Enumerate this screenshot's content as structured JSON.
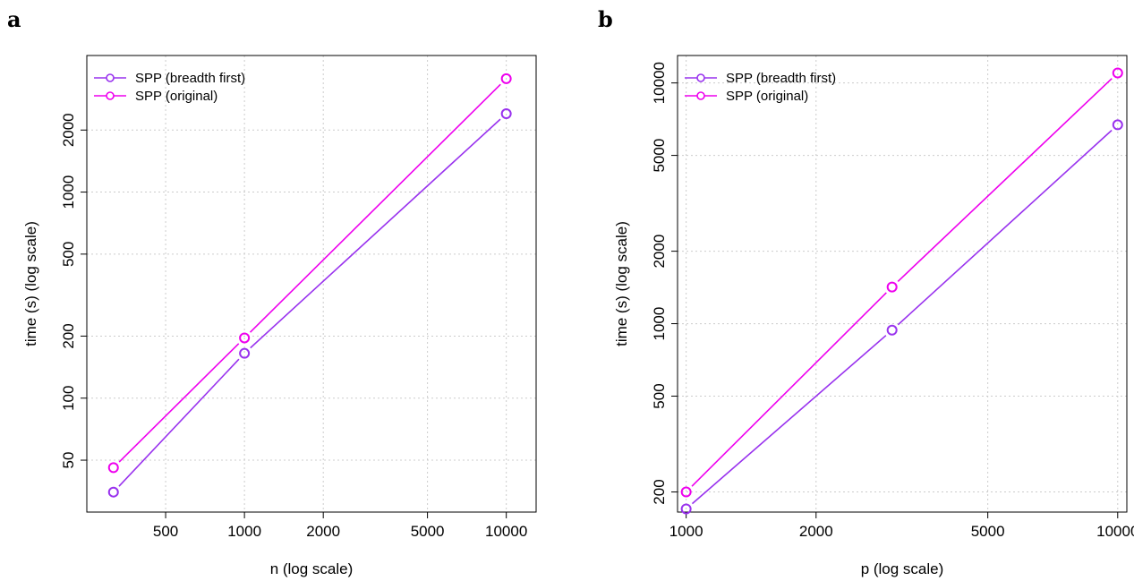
{
  "colors": {
    "breadth_first": "#9932ee",
    "original": "#ee00ee",
    "grid": "#cccccc",
    "axis": "#000000"
  },
  "chart_data": [
    {
      "panel": "a",
      "type": "line",
      "xlabel": "n (log scale)",
      "ylabel": "time (s) (log scale)",
      "xscale": "log",
      "yscale": "log",
      "xlim": [
        250,
        13000
      ],
      "ylim": [
        28,
        4600
      ],
      "xticks": [
        500,
        1000,
        2000,
        5000,
        10000
      ],
      "yticks": [
        50,
        100,
        200,
        500,
        1000,
        2000
      ],
      "grid": true,
      "legend_position": "top-left",
      "series": [
        {
          "name": "SPP (breadth first)",
          "color_key": "breadth_first",
          "x": [
            316,
            1000,
            10000
          ],
          "y": [
            35,
            165,
            2400
          ]
        },
        {
          "name": "SPP (original)",
          "color_key": "original",
          "x": [
            316,
            1000,
            10000
          ],
          "y": [
            46,
            196,
            3550
          ]
        }
      ]
    },
    {
      "panel": "b",
      "type": "line",
      "xlabel": "p (log scale)",
      "ylabel": "time (s) (log scale)",
      "xscale": "log",
      "yscale": "log",
      "xlim": [
        955,
        10500
      ],
      "ylim": [
        165,
        13000
      ],
      "xticks": [
        1000,
        2000,
        5000,
        10000
      ],
      "yticks": [
        200,
        500,
        1000,
        2000,
        5000,
        10000
      ],
      "grid": true,
      "legend_position": "top-left",
      "series": [
        {
          "name": "SPP (breadth first)",
          "color_key": "breadth_first",
          "x": [
            1000,
            3000,
            10000
          ],
          "y": [
            170,
            940,
            6700
          ]
        },
        {
          "name": "SPP (original)",
          "color_key": "original",
          "x": [
            1000,
            3000,
            10000
          ],
          "y": [
            200,
            1420,
            11000
          ]
        }
      ]
    }
  ]
}
